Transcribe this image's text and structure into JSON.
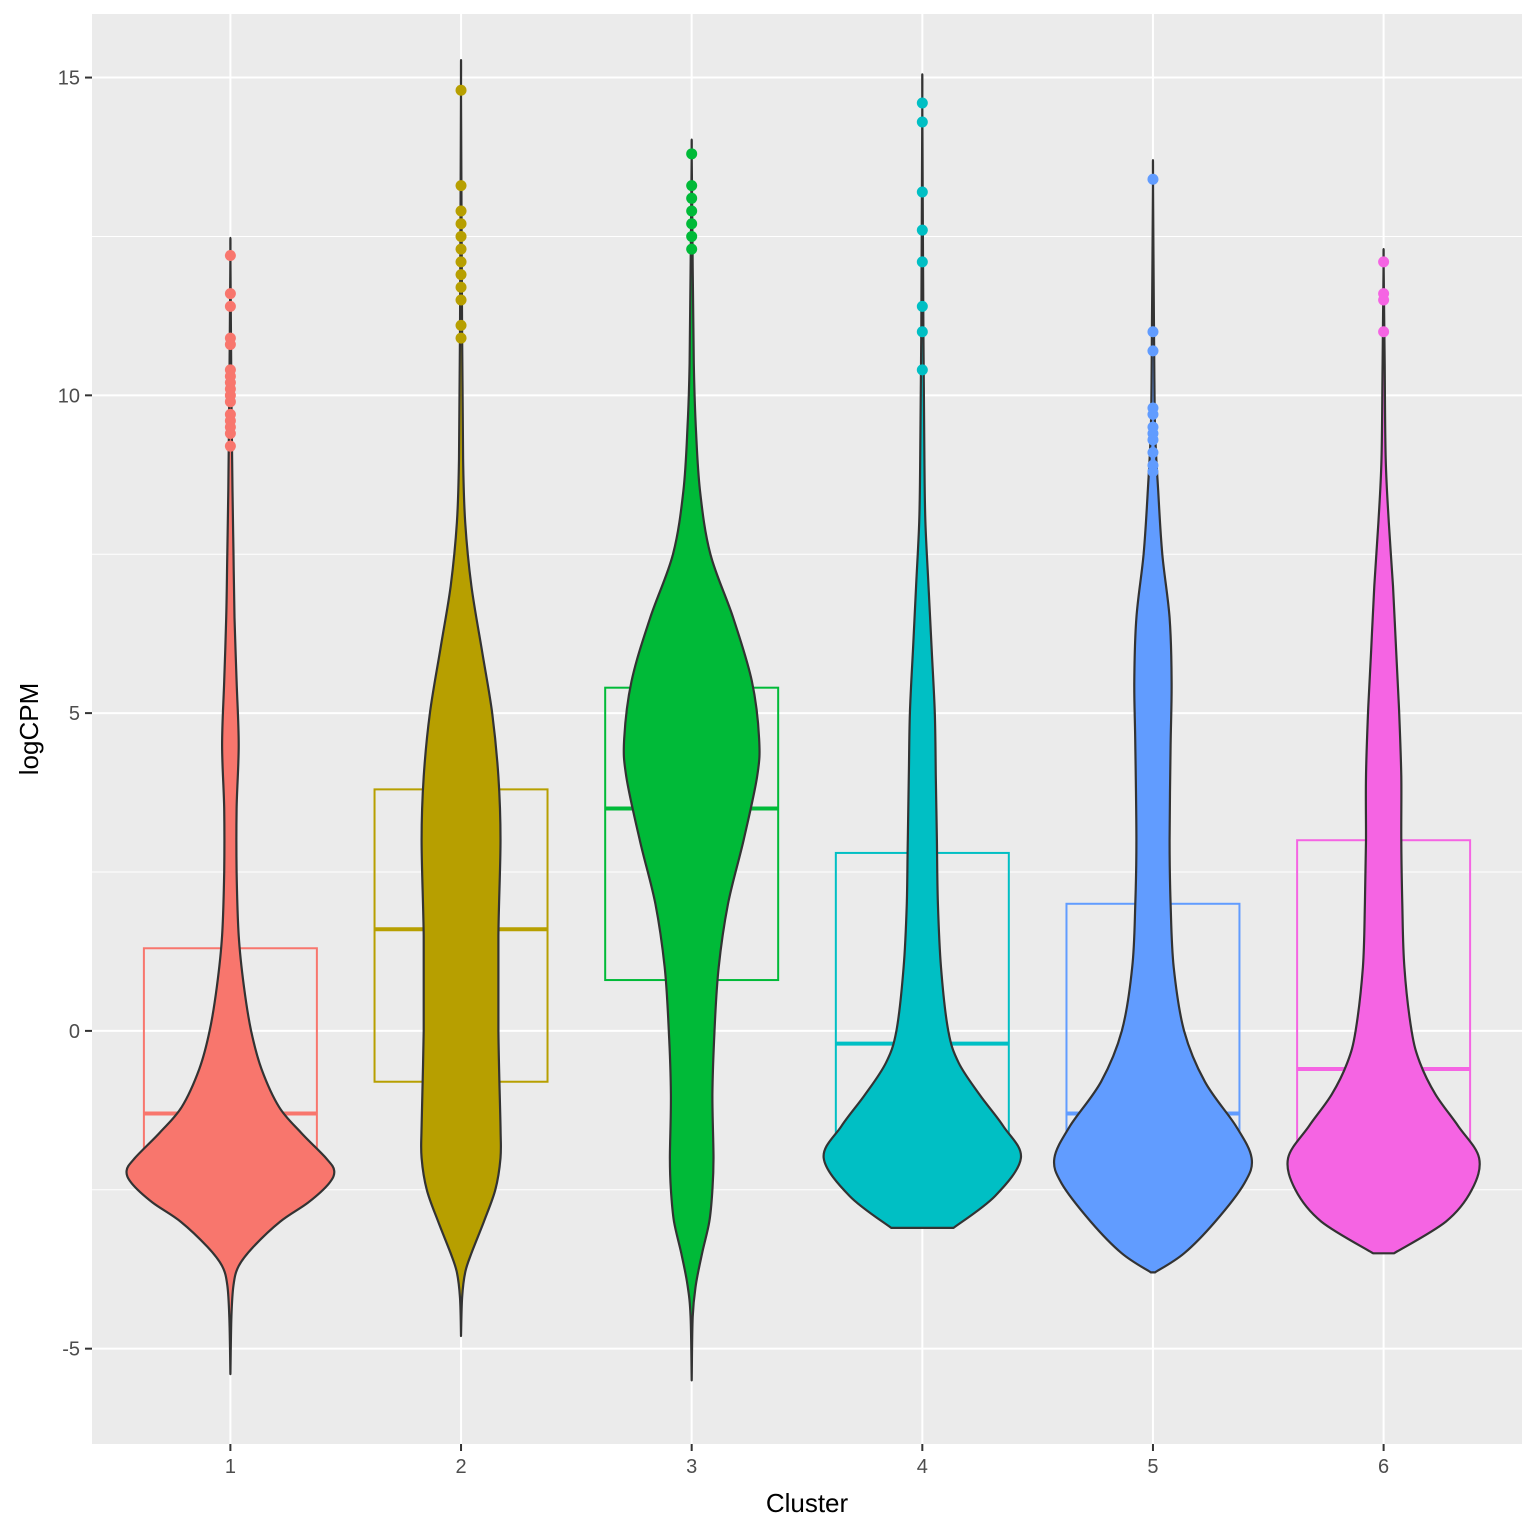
{
  "chart_data": {
    "type": "violin",
    "title": "",
    "xlabel": "Cluster",
    "ylabel": "logCPM",
    "ylim": [
      -6.5,
      16
    ],
    "yticks": [
      -5,
      0,
      5,
      10,
      15
    ],
    "yticklabels": [
      "-5",
      "0",
      "5",
      "10",
      "15"
    ],
    "categories": [
      "1",
      "2",
      "3",
      "4",
      "5",
      "6"
    ],
    "grid": true,
    "colors": [
      "#F8766D",
      "#B79F00",
      "#00BA38",
      "#00BFC4",
      "#619CFF",
      "#F564E3"
    ],
    "outline_color": "#333333",
    "series": [
      {
        "name": "1",
        "violin_min": -5.4,
        "violin_max": 12.2,
        "box": {
          "q1": -2.0,
          "median": -1.3,
          "q3": 1.3
        },
        "density": [
          [
            -5.4,
            0
          ],
          [
            -4.5,
            0.01
          ],
          [
            -4.0,
            0.03
          ],
          [
            -3.7,
            0.08
          ],
          [
            -3.4,
            0.22
          ],
          [
            -3.0,
            0.48
          ],
          [
            -2.7,
            0.75
          ],
          [
            -2.4,
            0.95
          ],
          [
            -2.2,
            1.0
          ],
          [
            -2.0,
            0.92
          ],
          [
            -1.6,
            0.68
          ],
          [
            -1.2,
            0.47
          ],
          [
            -0.6,
            0.3
          ],
          [
            0,
            0.2
          ],
          [
            0.7,
            0.13
          ],
          [
            1.5,
            0.08
          ],
          [
            2.5,
            0.06
          ],
          [
            3.5,
            0.06
          ],
          [
            4.5,
            0.08
          ],
          [
            5.5,
            0.06
          ],
          [
            6.5,
            0.04
          ],
          [
            7.5,
            0.03
          ],
          [
            8.5,
            0.02
          ],
          [
            10,
            0.01
          ],
          [
            12.2,
            0
          ]
        ],
        "outliers": [
          12.2,
          11.6,
          11.4,
          10.9,
          10.8,
          10.4,
          10.3,
          10.2,
          10.1,
          10.0,
          9.9,
          9.7,
          9.6,
          9.5,
          9.4,
          9.2
        ]
      },
      {
        "name": "2",
        "violin_min": -4.8,
        "violin_max": 14.8,
        "box": {
          "q1": -0.8,
          "median": 1.6,
          "q3": 3.8
        },
        "density": [
          [
            -4.8,
            0
          ],
          [
            -4.2,
            0.01
          ],
          [
            -3.8,
            0.04
          ],
          [
            -3.5,
            0.1
          ],
          [
            -3.0,
            0.22
          ],
          [
            -2.5,
            0.33
          ],
          [
            -2.0,
            0.38
          ],
          [
            -1.5,
            0.38
          ],
          [
            0,
            0.36
          ],
          [
            1.5,
            0.36
          ],
          [
            3.0,
            0.38
          ],
          [
            4.0,
            0.36
          ],
          [
            5.0,
            0.3
          ],
          [
            6.0,
            0.2
          ],
          [
            7.0,
            0.1
          ],
          [
            8.0,
            0.04
          ],
          [
            9,
            0.02
          ],
          [
            11,
            0.01
          ],
          [
            14.8,
            0
          ]
        ],
        "outliers": [
          14.8,
          13.3,
          12.9,
          12.7,
          12.5,
          12.3,
          12.1,
          11.9,
          11.7,
          11.5,
          11.1,
          10.9
        ]
      },
      {
        "name": "3",
        "violin_min": -5.5,
        "violin_max": 13.8,
        "box": {
          "q1": 0.8,
          "median": 3.5,
          "q3": 5.4
        },
        "density": [
          [
            -5.5,
            0
          ],
          [
            -4.5,
            0.01
          ],
          [
            -4.0,
            0.04
          ],
          [
            -3.5,
            0.1
          ],
          [
            -3.0,
            0.17
          ],
          [
            -2.5,
            0.2
          ],
          [
            -2.0,
            0.21
          ],
          [
            -1.0,
            0.2
          ],
          [
            0,
            0.22
          ],
          [
            1.0,
            0.26
          ],
          [
            2.0,
            0.35
          ],
          [
            3.0,
            0.5
          ],
          [
            4.0,
            0.63
          ],
          [
            4.6,
            0.65
          ],
          [
            5.5,
            0.58
          ],
          [
            6.5,
            0.4
          ],
          [
            7.5,
            0.18
          ],
          [
            8.5,
            0.08
          ],
          [
            9.5,
            0.04
          ],
          [
            10.5,
            0.02
          ],
          [
            12,
            0.01
          ],
          [
            13.8,
            0
          ]
        ],
        "outliers": [
          13.8,
          13.3,
          13.1,
          12.9,
          12.7,
          12.5,
          12.3
        ]
      },
      {
        "name": "4",
        "violin_min": -3.1,
        "violin_max": 14.6,
        "box": {
          "q1": -1.9,
          "median": -0.2,
          "q3": 2.8
        },
        "density": [
          [
            -3.1,
            0.3
          ],
          [
            -2.6,
            0.7
          ],
          [
            -2.0,
            0.95
          ],
          [
            -1.5,
            0.78
          ],
          [
            -1.0,
            0.55
          ],
          [
            -0.5,
            0.35
          ],
          [
            0,
            0.25
          ],
          [
            1.0,
            0.18
          ],
          [
            2.0,
            0.15
          ],
          [
            3.0,
            0.14
          ],
          [
            4.0,
            0.13
          ],
          [
            5.0,
            0.12
          ],
          [
            6.0,
            0.09
          ],
          [
            7.0,
            0.06
          ],
          [
            8.0,
            0.03
          ],
          [
            9,
            0.02
          ],
          [
            11,
            0.01
          ],
          [
            14.6,
            0
          ]
        ],
        "outliers": [
          14.6,
          14.3,
          13.2,
          12.6,
          12.1,
          11.4,
          11.0,
          10.4
        ]
      },
      {
        "name": "5",
        "violin_min": -3.8,
        "violin_max": 13.4,
        "box": {
          "q1": -2.0,
          "median": -1.3,
          "q3": 2.0
        },
        "density": [
          [
            -3.8,
            0.02
          ],
          [
            -3.5,
            0.3
          ],
          [
            -3.0,
            0.6
          ],
          [
            -2.4,
            0.88
          ],
          [
            -2.0,
            0.95
          ],
          [
            -1.5,
            0.8
          ],
          [
            -0.8,
            0.5
          ],
          [
            0,
            0.3
          ],
          [
            1.0,
            0.2
          ],
          [
            2.0,
            0.17
          ],
          [
            3.0,
            0.16
          ],
          [
            4.5,
            0.17
          ],
          [
            5.5,
            0.18
          ],
          [
            6.5,
            0.16
          ],
          [
            7.5,
            0.09
          ],
          [
            8.5,
            0.05
          ],
          [
            9.5,
            0.02
          ],
          [
            11,
            0.01
          ],
          [
            13.4,
            0
          ]
        ],
        "outliers": [
          13.4,
          11.0,
          10.7,
          9.8,
          9.7,
          9.5,
          9.4,
          9.3,
          9.1,
          8.9,
          8.8
        ]
      },
      {
        "name": "6",
        "violin_min": -3.5,
        "violin_max": 12.1,
        "box": {
          "q1": -2.2,
          "median": -0.6,
          "q3": 3.0
        },
        "density": [
          [
            -3.5,
            0.1
          ],
          [
            -3.0,
            0.6
          ],
          [
            -2.5,
            0.85
          ],
          [
            -2.0,
            0.92
          ],
          [
            -1.5,
            0.72
          ],
          [
            -1.0,
            0.5
          ],
          [
            -0.5,
            0.35
          ],
          [
            0,
            0.27
          ],
          [
            1,
            0.2
          ],
          [
            2,
            0.18
          ],
          [
            3,
            0.17
          ],
          [
            4,
            0.17
          ],
          [
            5,
            0.15
          ],
          [
            6,
            0.12
          ],
          [
            7,
            0.09
          ],
          [
            8,
            0.05
          ],
          [
            9,
            0.02
          ],
          [
            10.5,
            0.01
          ],
          [
            12.1,
            0
          ]
        ],
        "outliers": [
          12.1,
          11.6,
          11.5,
          11.0
        ]
      }
    ]
  }
}
